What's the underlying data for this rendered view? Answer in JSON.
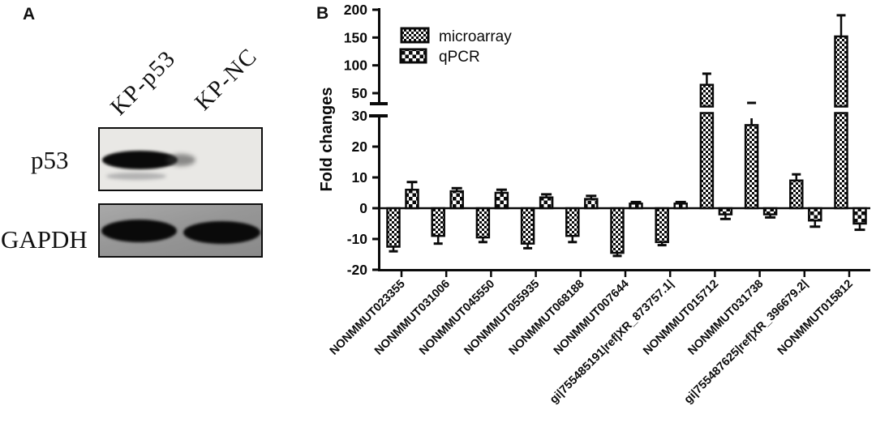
{
  "figure": {
    "panel_a": {
      "panel_label": "A",
      "lane_labels": [
        "KP-p53",
        "KP-NC"
      ],
      "blot_rows": [
        "p53",
        "GAPDH"
      ],
      "band_presence": {
        "p53": [
          true,
          false
        ],
        "GAPDH": [
          true,
          true
        ]
      }
    },
    "panel_b": {
      "panel_label": "B"
    }
  },
  "chart_data": {
    "type": "bar",
    "title": "",
    "xlabel": "",
    "ylabel": "Fold changes",
    "grid": false,
    "legend_position": "inside-top-left",
    "bar_color": "#0a0a0a",
    "pattern_styles": [
      "fine-checkerboard",
      "coarse-checkerboard"
    ],
    "axis_break": {
      "lower_range": [
        -20,
        30
      ],
      "upper_range": [
        50,
        200
      ],
      "lower_ticks": [
        30,
        20,
        10,
        0,
        -10,
        -20
      ],
      "upper_ticks": [
        200,
        150,
        100,
        50
      ]
    },
    "categories": [
      "NONMMUT023355",
      "NONMMUT031006",
      "NONMMUT045550",
      "NONMMUT055935",
      "NONMMUT068188",
      "NONMMUT007644",
      "gi|755485191|ref|XR_873757.1|",
      "NONMMUT015712",
      "NONMMUT031738",
      "gi|755487625|ref|XR_396679.2|",
      "NONMMUT015812"
    ],
    "series": [
      {
        "name": "microarray",
        "values": [
          -12.5,
          -9,
          -9.5,
          -11.5,
          -9,
          -14.5,
          -11,
          65,
          27,
          9,
          152
        ],
        "errors": [
          1.5,
          2.5,
          1.5,
          1.5,
          2,
          1,
          1,
          20,
          18,
          2,
          38
        ]
      },
      {
        "name": "qPCR",
        "values": [
          6,
          5.5,
          5,
          3.5,
          3,
          1.5,
          1.5,
          -2,
          -2,
          -4,
          -5
        ],
        "errors": [
          2.5,
          1,
          1,
          1,
          1,
          0.5,
          0.5,
          1.5,
          1,
          2,
          2
        ]
      }
    ]
  }
}
